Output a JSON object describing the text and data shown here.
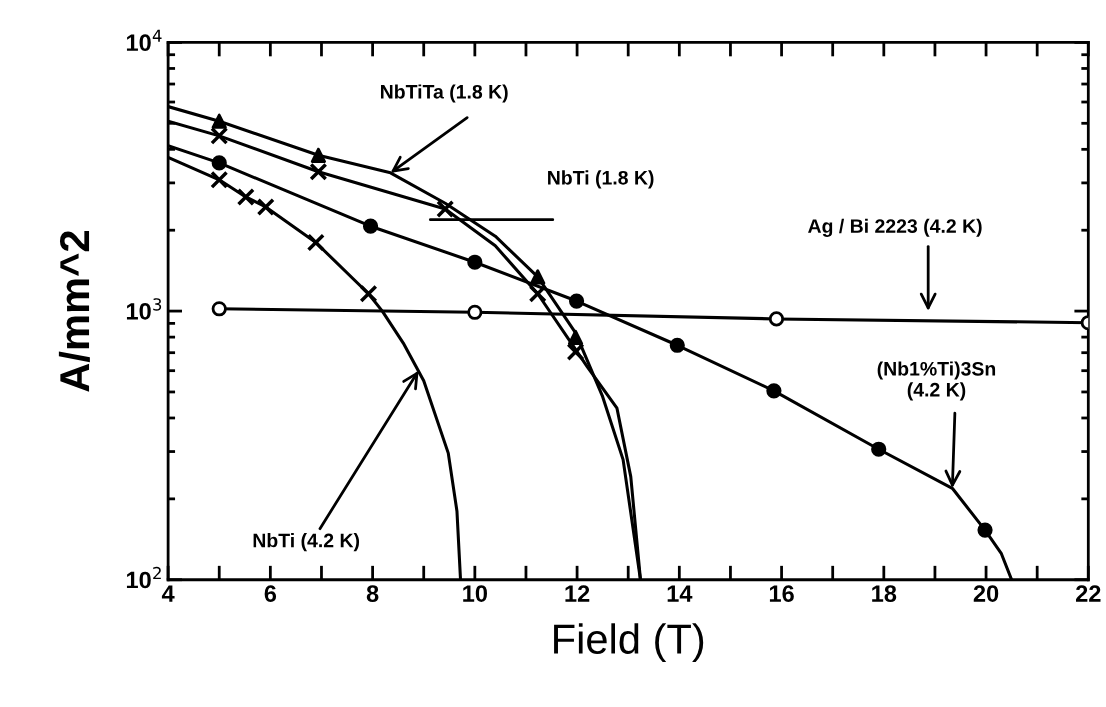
{
  "chart_data": {
    "type": "line",
    "xlabel": "Field (T)",
    "ylabel": "A/mm^2",
    "log": "y",
    "grid": false,
    "legend": false,
    "xlim": [
      4,
      22
    ],
    "ylim": [
      100,
      10000
    ],
    "xticks": [
      4,
      {
        "value": 5,
        "label": null
      },
      6,
      {
        "value": 7,
        "label": null
      },
      8,
      {
        "value": 9,
        "label": null
      },
      10,
      {
        "value": 11,
        "label": null
      },
      12,
      {
        "value": 13,
        "label": null
      },
      14,
      {
        "value": 15,
        "label": null
      },
      16,
      {
        "value": 17,
        "label": null
      },
      18,
      {
        "value": 19,
        "label": null
      },
      20,
      {
        "value": 21,
        "label": null
      },
      22
    ],
    "yticks": [
      {
        "value": 100,
        "label": "10$^{2}$"
      },
      {
        "value": 1000,
        "label": "10$^{3}$"
      },
      {
        "value": 10000,
        "label": "10$^{4}$"
      }
    ],
    "series": [
      {
        "color": "#000000",
        "marker": "none",
        "x": [
          4,
          5,
          6.94,
          8.35,
          9.42,
          10.4,
          11.23,
          11.97,
          12.5,
          12.9,
          13.24
        ],
        "values": [
          5770,
          5090,
          3800,
          3270,
          2520,
          1900,
          1340,
          830,
          480,
          280,
          100
        ]
      },
      {
        "color": "#000000",
        "marker": "none",
        "x": [
          4,
          5,
          6.94,
          9.42,
          10.4,
          11.23,
          11.97,
          12.2,
          12.78,
          13.05,
          13.24
        ],
        "values": [
          5090,
          4490,
          3300,
          2400,
          1750,
          1160,
          720,
          620,
          435,
          242,
          100
        ]
      },
      {
        "color": "#000000",
        "marker": "none",
        "x": [
          4,
          5,
          7.96,
          10,
          11.99,
          13.96,
          15.85,
          17.9,
          19.34,
          19.98,
          20.3,
          20.5
        ],
        "values": [
          4130,
          3560,
          2070,
          1520,
          1090,
          746,
          505,
          306,
          219,
          153,
          125,
          100
        ]
      },
      {
        "color": "#000000",
        "marker": "none",
        "x": [
          4,
          5,
          5.52,
          5.91,
          6.89,
          7.92,
          8.19,
          8.6,
          9.0,
          9.48,
          9.65,
          9.72
        ],
        "values": [
          3730,
          3080,
          2660,
          2440,
          1800,
          1160,
          1000,
          760,
          550,
          296,
          180,
          100
        ]
      },
      {
        "color": "#000000",
        "marker": "none",
        "x": [
          5,
          10,
          15.9,
          22
        ],
        "values": [
          1020,
          990,
          935,
          905
        ]
      },
      {
        "type": "scatter",
        "color": "#000000",
        "marker": "triangle",
        "x": [
          5,
          6.94,
          11.23,
          11.97
        ],
        "values": [
          5090,
          3800,
          1340,
          798
        ]
      },
      {
        "type": "scatter",
        "color": "#000000",
        "marker": "cross",
        "x": [
          5,
          6.94,
          9.42,
          11.23,
          11.97
        ],
        "values": [
          4490,
          3300,
          2400,
          1160,
          705
        ]
      },
      {
        "type": "scatter",
        "color": "#000000",
        "marker": "circle",
        "x": [
          5,
          7.96,
          10,
          11.99,
          13.96,
          15.85,
          17.9,
          19.98
        ],
        "values": [
          3560,
          2070,
          1520,
          1090,
          746,
          505,
          306,
          153
        ]
      },
      {
        "type": "scatter",
        "color": "#000000",
        "marker": "cross",
        "x": [
          5,
          5.52,
          5.91,
          6.89,
          7.92
        ],
        "values": [
          3080,
          2660,
          2440,
          1800,
          1160
        ]
      },
      {
        "type": "scatter",
        "color": "#ffffff",
        "marker": "circle",
        "x": [
          5,
          10,
          15.9,
          22
        ],
        "values": [
          1020,
          990,
          935,
          905
        ]
      }
    ],
    "annotations": [
      {
        "text": "NbTiTa (1.8 K)",
        "x": 8.35,
        "y": 3270
      },
      "NbTi (1.8 K)",
      "Ag / Bi 2223 (4.2 K)",
      {
        "text": "(Nb1%Ti)3Sn\n(4.2 K)",
        "x": 19.34,
        "y": 219
      },
      {
        "text": "NbTi (4.2 K)",
        "x": 8.9,
        "y": 600
      }
    ]
  }
}
